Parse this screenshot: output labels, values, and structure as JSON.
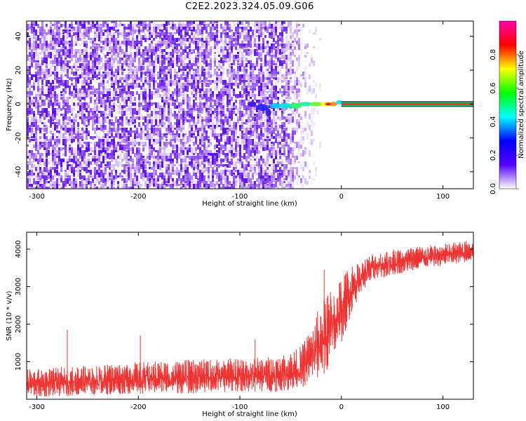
{
  "title": "C2E2.2023.324.05.09.G06",
  "chart_data": [
    {
      "type": "heatmap",
      "xlabel": "Height of straight line (km)",
      "ylabel": "Frequency (Hz)",
      "xlim": [
        -310,
        130
      ],
      "ylim": [
        -50,
        49
      ],
      "x_ticks": [
        -300,
        -200,
        -100,
        0,
        100
      ],
      "y_ticks": [
        -40,
        -20,
        0,
        20,
        40
      ],
      "colorbar": {
        "label": "Normalized spectral amplitude",
        "range": [
          0,
          1
        ],
        "ticks": [
          "0.0",
          "0.2",
          "0.4",
          "0.6",
          "0.8"
        ],
        "colormap": [
          "#ffffff",
          "#5500ff",
          "#0000ff",
          "#00ffff",
          "#00ff00",
          "#ffff00",
          "#ff0000",
          "#ff00aa"
        ]
      },
      "noise_region": {
        "x_range": [
          -310,
          -60
        ],
        "fade_to_x": -20,
        "color": "#6a1cf0"
      },
      "carrier": {
        "frequency": 0,
        "x_start": -90,
        "x_end": 130,
        "peak_color": "#ff3333"
      }
    },
    {
      "type": "line",
      "xlabel": "Height of straight line (km)",
      "ylabel": "SNR (10 * v/v)",
      "xlim": [
        -310,
        130
      ],
      "ylim": [
        0,
        4450
      ],
      "x_ticks": [
        -300,
        -200,
        -100,
        0,
        100
      ],
      "y_ticks": [
        1000,
        2000,
        3000,
        4000
      ],
      "color": "#ee3333",
      "envelope": {
        "x": [
          -310,
          -250,
          -200,
          -150,
          -100,
          -60,
          -40,
          -30,
          -20,
          -10,
          0,
          10,
          20,
          30,
          50,
          80,
          100,
          130
        ],
        "low": [
          50,
          100,
          150,
          150,
          200,
          200,
          300,
          400,
          600,
          900,
          1500,
          2300,
          2900,
          3100,
          3300,
          3500,
          3550,
          3700
        ],
        "high": [
          800,
          900,
          1000,
          1050,
          1100,
          1150,
          1400,
          1900,
          2600,
          3000,
          3300,
          3600,
          3700,
          3900,
          4000,
          4100,
          4150,
          4250
        ]
      },
      "spikes": [
        {
          "x": -270,
          "y": 1850
        },
        {
          "x": -198,
          "y": 1700
        },
        {
          "x": -85,
          "y": 1600
        },
        {
          "x": -17,
          "y": 3450
        }
      ]
    }
  ]
}
